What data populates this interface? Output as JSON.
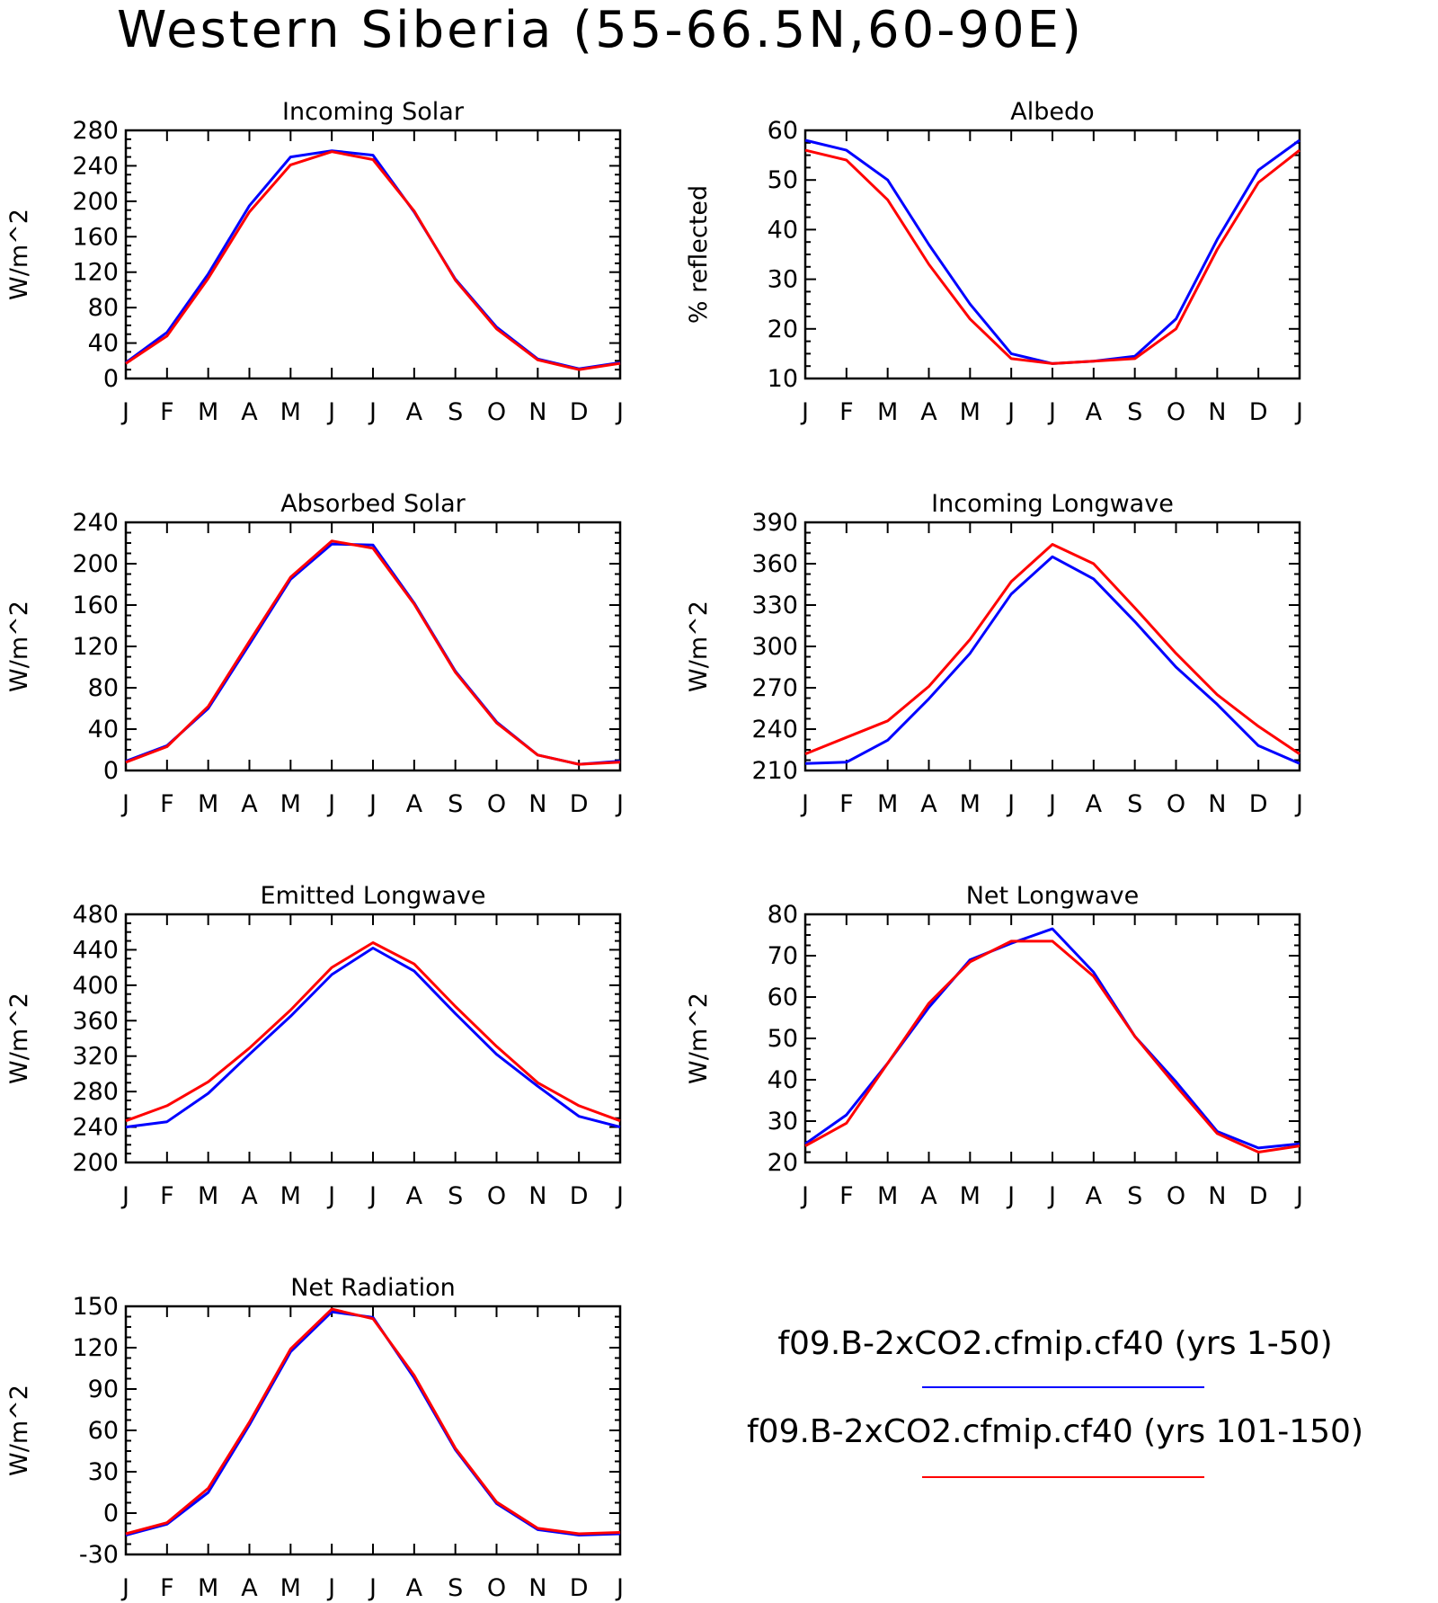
{
  "title": "Western Siberia (55-66.5N,60-90E)",
  "colors": {
    "series_1": "#0000ff",
    "series_2": "#ff0000",
    "axis": "#000000"
  },
  "legend": {
    "entries": [
      {
        "label": "f09.B-2xCO2.cfmip.cf40 (yrs 1-50)",
        "color": "#0000ff"
      },
      {
        "label": "f09.B-2xCO2.cfmip.cf40 (yrs 101-150)",
        "color": "#ff0000"
      }
    ]
  },
  "chart_data": [
    {
      "type": "line",
      "title": "Incoming Solar",
      "ylabel": "W/m^2",
      "ylim": [
        0,
        280
      ],
      "yticks": [
        0,
        40,
        80,
        120,
        160,
        200,
        240,
        280
      ],
      "categories": [
        "J",
        "F",
        "M",
        "A",
        "M",
        "J",
        "J",
        "A",
        "S",
        "O",
        "N",
        "D",
        "J"
      ],
      "series": [
        {
          "color": "#0000ff",
          "values": [
            18,
            52,
            118,
            195,
            250,
            257,
            252,
            188,
            112,
            58,
            22,
            11,
            18
          ]
        },
        {
          "color": "#ff0000",
          "values": [
            17,
            48,
            113,
            188,
            241,
            256,
            247,
            189,
            111,
            56,
            21,
            10,
            17
          ]
        }
      ]
    },
    {
      "type": "line",
      "title": "Albedo",
      "ylabel": "% reflected",
      "ylim": [
        10,
        60
      ],
      "yticks": [
        10,
        20,
        30,
        40,
        50,
        60
      ],
      "categories": [
        "J",
        "F",
        "M",
        "A",
        "M",
        "J",
        "J",
        "A",
        "S",
        "O",
        "N",
        "D",
        "J"
      ],
      "series": [
        {
          "color": "#0000ff",
          "values": [
            58,
            56,
            50,
            37,
            25,
            15,
            13,
            13.5,
            14.5,
            22,
            38,
            52,
            58
          ]
        },
        {
          "color": "#ff0000",
          "values": [
            56,
            54,
            46,
            33,
            22,
            14,
            13,
            13.5,
            14,
            20,
            36,
            49.5,
            56
          ]
        }
      ]
    },
    {
      "type": "line",
      "title": "Absorbed Solar",
      "ylabel": "W/m^2",
      "ylim": [
        0,
        240
      ],
      "yticks": [
        0,
        40,
        80,
        120,
        160,
        200,
        240
      ],
      "categories": [
        "J",
        "F",
        "M",
        "A",
        "M",
        "J",
        "J",
        "A",
        "S",
        "O",
        "N",
        "D",
        "J"
      ],
      "series": [
        {
          "color": "#0000ff",
          "values": [
            9,
            24,
            60,
            122,
            185,
            219,
            218,
            162,
            96,
            47,
            15,
            6,
            9
          ]
        },
        {
          "color": "#ff0000",
          "values": [
            8,
            23,
            62,
            125,
            187,
            222,
            215,
            161,
            95,
            46,
            15,
            6,
            8
          ]
        }
      ]
    },
    {
      "type": "line",
      "title": "Incoming Longwave",
      "ylabel": "W/m^2",
      "ylim": [
        210,
        390
      ],
      "yticks": [
        210,
        240,
        270,
        300,
        330,
        360,
        390
      ],
      "categories": [
        "J",
        "F",
        "M",
        "A",
        "M",
        "J",
        "J",
        "A",
        "S",
        "O",
        "N",
        "D",
        "J"
      ],
      "series": [
        {
          "color": "#0000ff",
          "values": [
            215,
            216,
            232,
            262,
            295,
            338,
            365,
            349,
            318,
            285,
            258,
            228,
            215
          ]
        },
        {
          "color": "#ff0000",
          "values": [
            222,
            234,
            246,
            271,
            305,
            347,
            374,
            360,
            328,
            295,
            265,
            242,
            222
          ]
        }
      ]
    },
    {
      "type": "line",
      "title": "Emitted Longwave",
      "ylabel": "W/m^2",
      "ylim": [
        200,
        480
      ],
      "yticks": [
        200,
        240,
        280,
        320,
        360,
        400,
        440,
        480
      ],
      "categories": [
        "J",
        "F",
        "M",
        "A",
        "M",
        "J",
        "J",
        "A",
        "S",
        "O",
        "N",
        "D",
        "J"
      ],
      "series": [
        {
          "color": "#0000ff",
          "values": [
            240,
            246,
            278,
            322,
            365,
            412,
            442,
            416,
            368,
            322,
            286,
            252,
            240
          ]
        },
        {
          "color": "#ff0000",
          "values": [
            247,
            264,
            291,
            329,
            372,
            420,
            448,
            424,
            376,
            331,
            290,
            264,
            247
          ]
        }
      ]
    },
    {
      "type": "line",
      "title": "Net Longwave",
      "ylabel": "W/m^2",
      "ylim": [
        20,
        80
      ],
      "yticks": [
        20,
        30,
        40,
        50,
        60,
        70,
        80
      ],
      "categories": [
        "J",
        "F",
        "M",
        "A",
        "M",
        "J",
        "J",
        "A",
        "S",
        "O",
        "N",
        "D",
        "J"
      ],
      "series": [
        {
          "color": "#0000ff",
          "values": [
            24.5,
            31.5,
            44,
            57.5,
            69,
            73,
            76.5,
            66,
            50.5,
            39.5,
            27.5,
            23.5,
            24.5
          ]
        },
        {
          "color": "#ff0000",
          "values": [
            24,
            29.5,
            44,
            58.5,
            68.5,
            73.5,
            73.5,
            65,
            50.5,
            38.5,
            27,
            22.5,
            24
          ]
        }
      ]
    },
    {
      "type": "line",
      "title": "Net Radiation",
      "ylabel": "W/m^2",
      "ylim": [
        -30,
        150
      ],
      "yticks": [
        -30,
        0,
        30,
        60,
        90,
        120,
        150
      ],
      "categories": [
        "J",
        "F",
        "M",
        "A",
        "M",
        "J",
        "J",
        "A",
        "S",
        "O",
        "N",
        "D",
        "J"
      ],
      "series": [
        {
          "color": "#0000ff",
          "values": [
            -16,
            -8,
            15,
            64,
            117,
            146,
            142,
            98,
            46,
            7,
            -12,
            -16,
            -15
          ]
        },
        {
          "color": "#ff0000",
          "values": [
            -15,
            -7,
            18,
            66,
            119,
            148,
            141,
            100,
            47,
            8,
            -11,
            -15,
            -14
          ]
        }
      ]
    }
  ]
}
